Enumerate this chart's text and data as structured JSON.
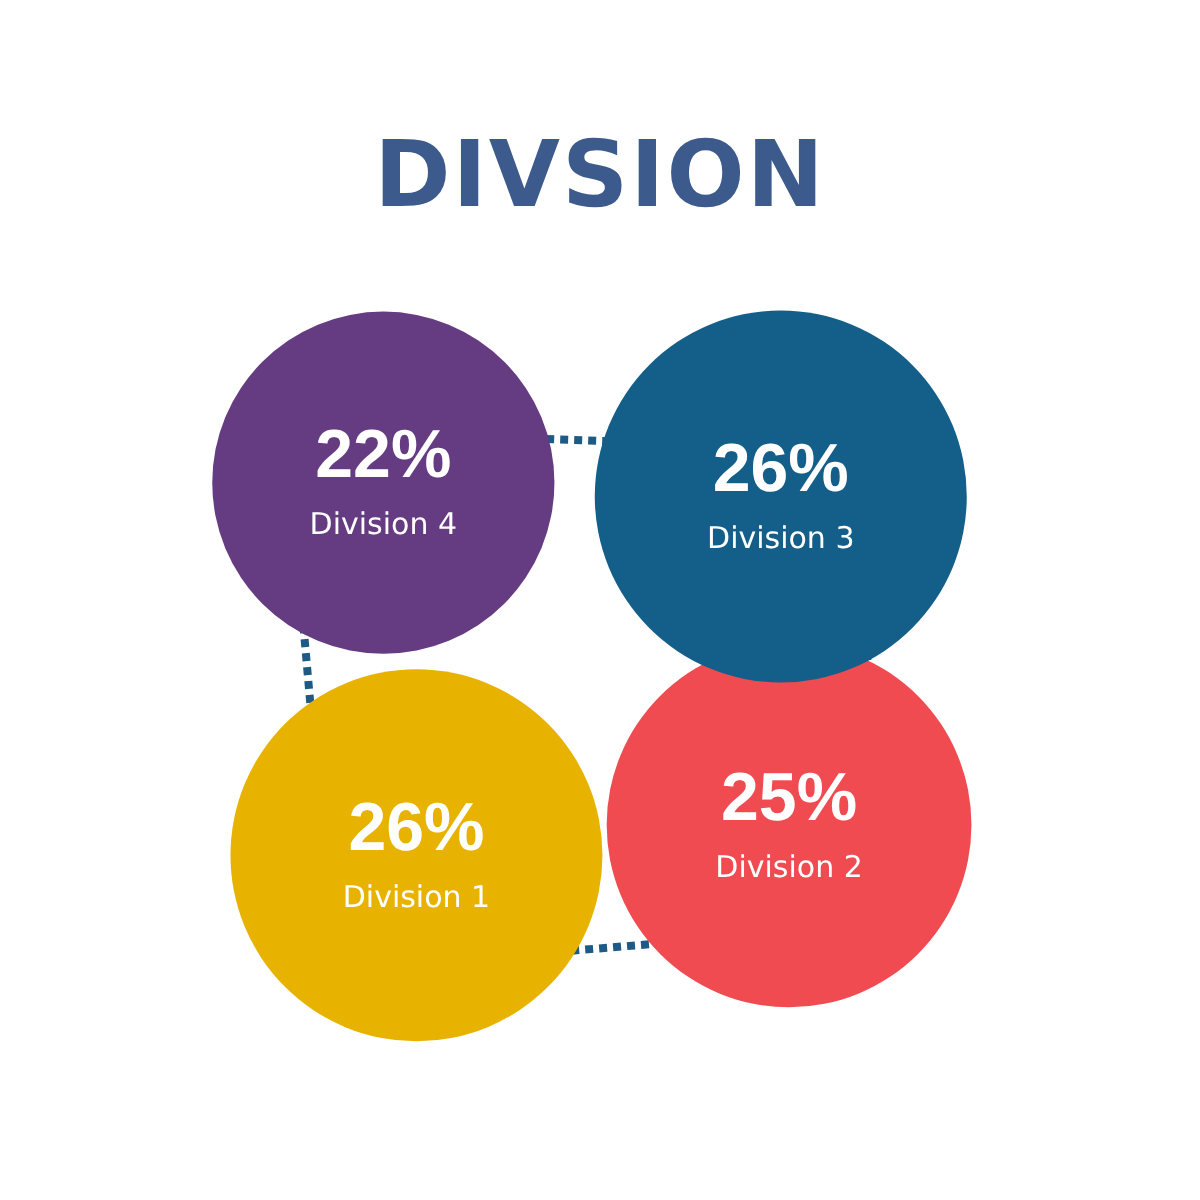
{
  "chart_data": {
    "type": "other",
    "title": "DIVSION",
    "categories": [
      "Division 1",
      "Division 2",
      "Division 3",
      "Division 4"
    ],
    "values": [
      26,
      25,
      26,
      22
    ],
    "value_labels": [
      "26%",
      "25%",
      "26%",
      "22%"
    ],
    "colors": [
      "#e8b300",
      "#ef4b50",
      "#135f8a",
      "#653b82"
    ]
  }
}
